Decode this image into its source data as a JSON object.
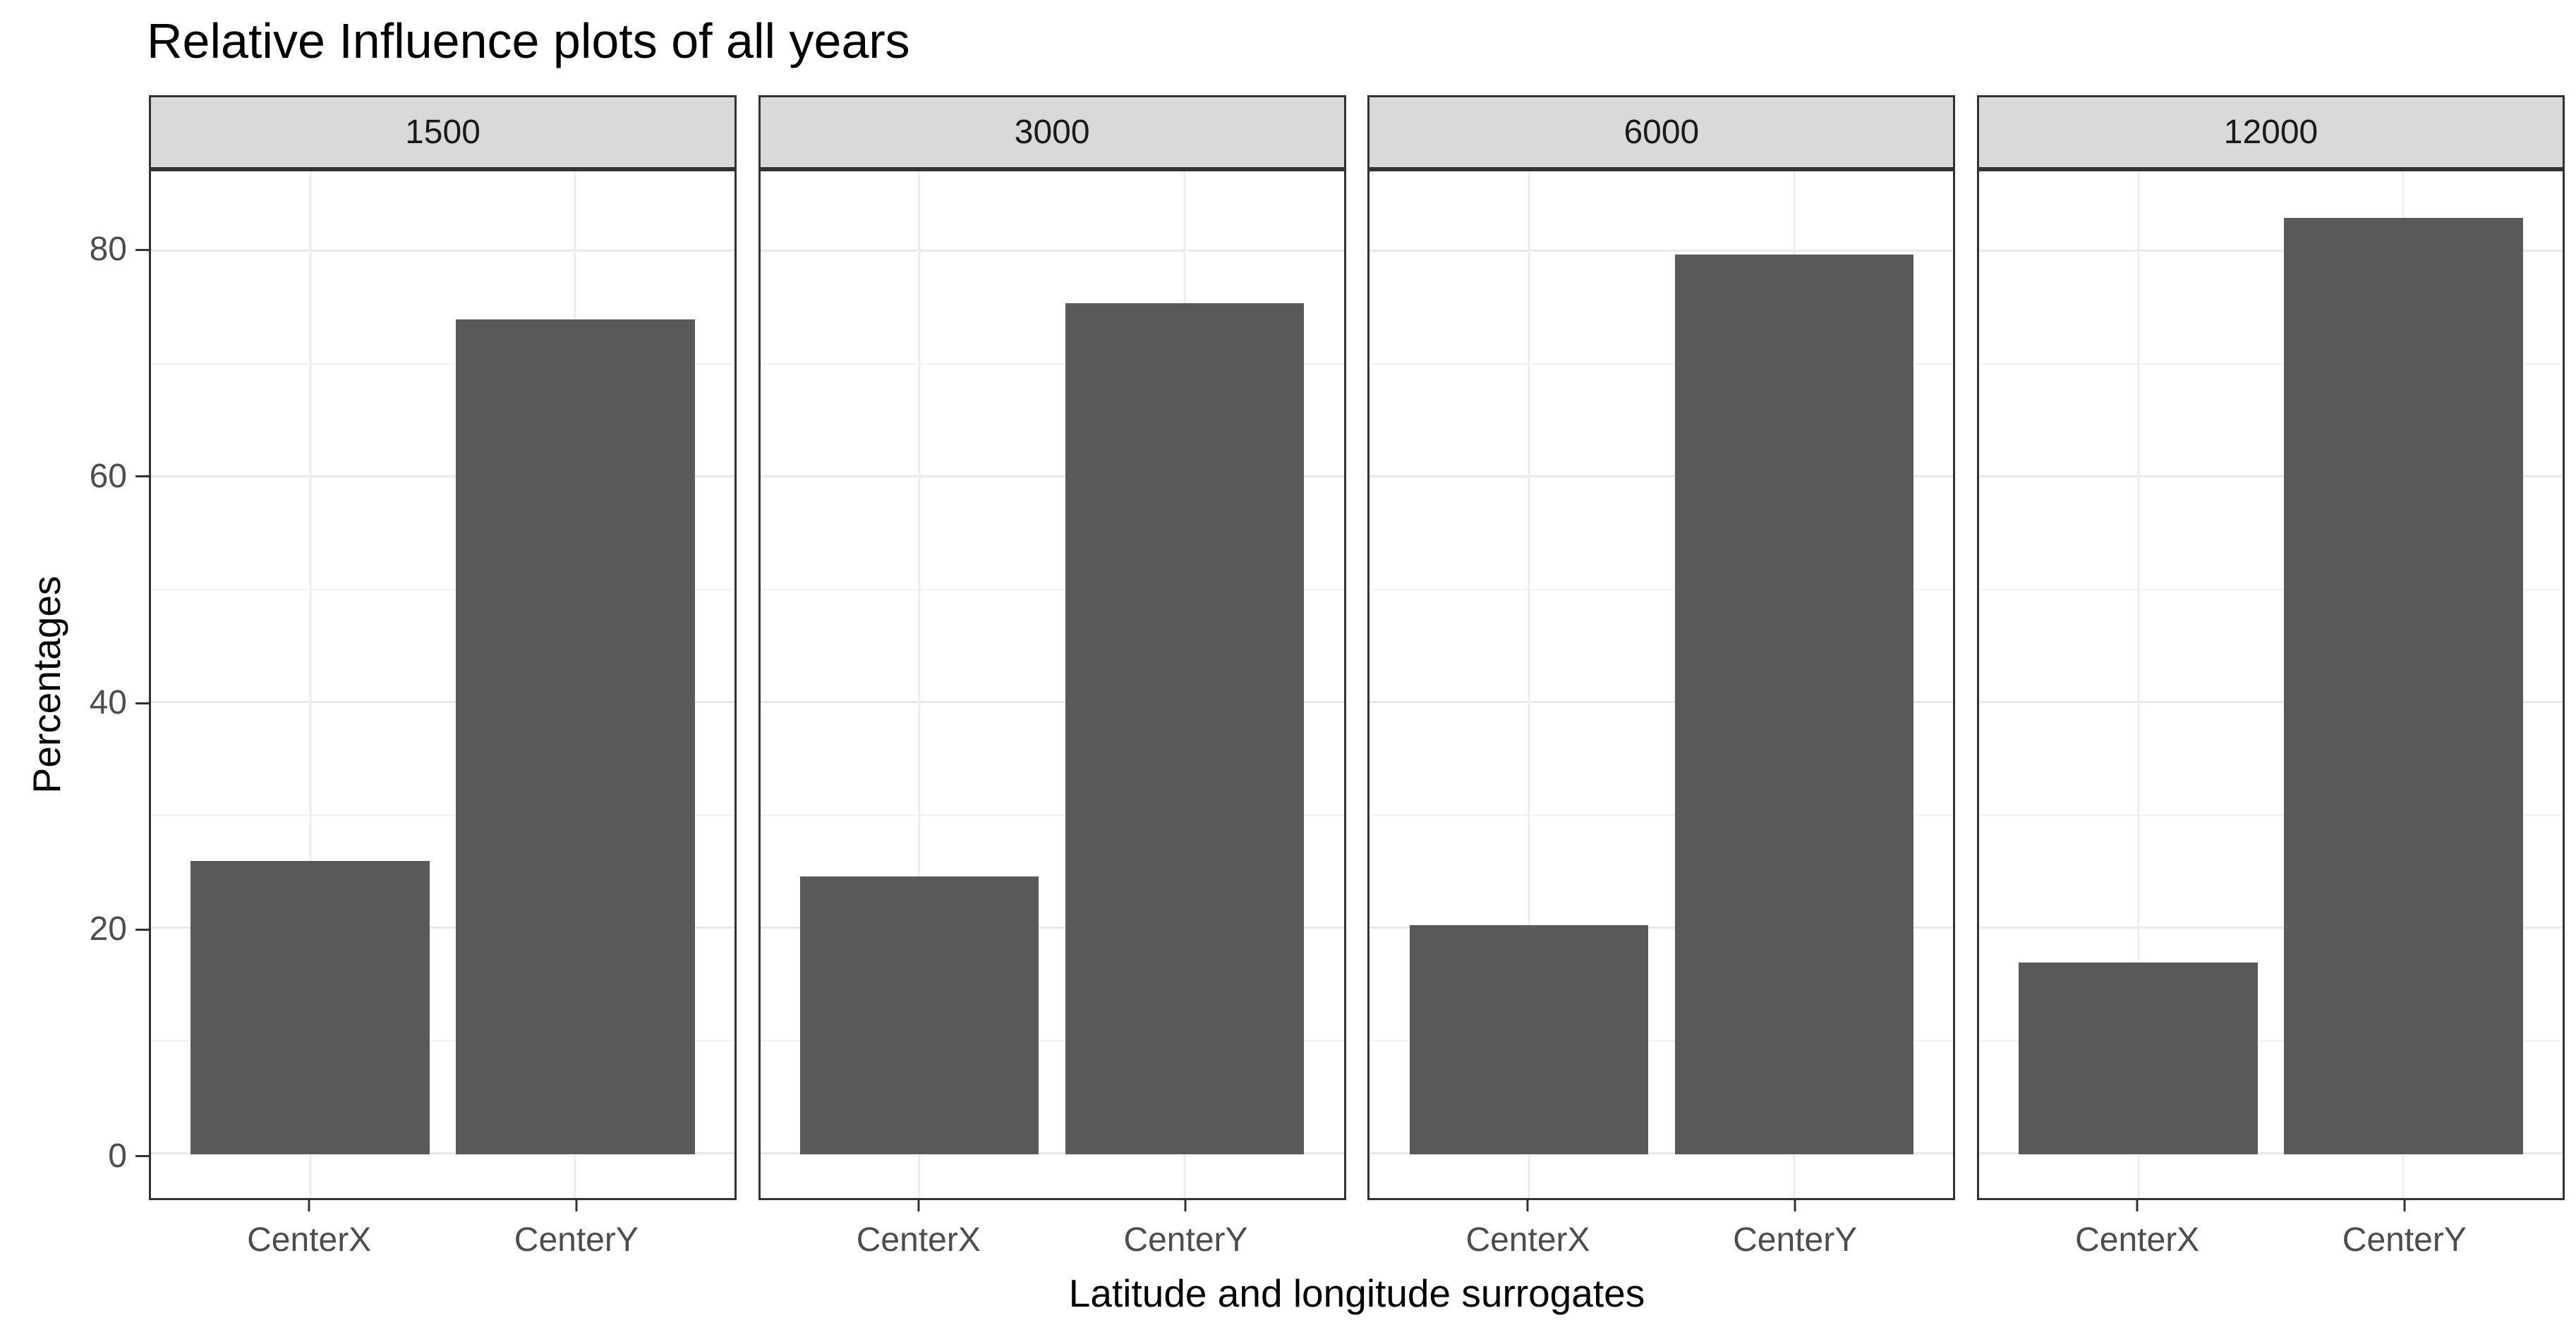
{
  "title": "Relative Influence plots of all years",
  "x_axis_title": "Latitude and longitude surrogates",
  "y_axis_title": "Percentages",
  "chart_data": {
    "type": "bar",
    "faceted": true,
    "facet_labels": [
      "1500",
      "3000",
      "6000",
      "12000"
    ],
    "categories": [
      "CenterX",
      "CenterY"
    ],
    "series": [
      {
        "facet": "1500",
        "values": [
          26.0,
          74.0
        ]
      },
      {
        "facet": "3000",
        "values": [
          24.6,
          75.4
        ]
      },
      {
        "facet": "6000",
        "values": [
          20.3,
          79.7
        ]
      },
      {
        "facet": "12000",
        "values": [
          17.0,
          83.0
        ]
      }
    ],
    "title": "Relative Influence plots of all years",
    "xlabel": "Latitude and longitude surrogates",
    "ylabel": "Percentages",
    "y_major_ticks": [
      0,
      20,
      40,
      60,
      80
    ],
    "y_minor_gridlines": [
      10,
      30,
      50,
      70
    ],
    "ylim": [
      -3.86,
      87.1
    ],
    "grid": true,
    "legend": false,
    "colors": {
      "bar_fill": "#595959",
      "panel_background": "#ffffff",
      "strip_background": "#d9d9d9",
      "panel_border": "#333333",
      "grid_major": "#e9e9e9",
      "grid_minor": "#f2f2f2",
      "axis_text": "#4d4d4d",
      "title_text": "#000000"
    }
  }
}
